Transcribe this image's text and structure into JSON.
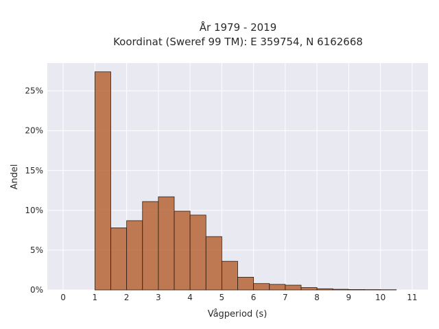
{
  "chart_data": {
    "type": "bar",
    "title_line1": "År 1979 - 2019",
    "title_line2": "Koordinat (Sweref 99 TM): E 359754, N 6162668",
    "xlabel": "Vågperiod (s)",
    "ylabel": "Andel",
    "x_ticks": [
      0,
      1,
      2,
      3,
      4,
      5,
      6,
      7,
      8,
      9,
      10,
      11
    ],
    "y_ticks": [
      0,
      5,
      10,
      15,
      20,
      25
    ],
    "y_tick_labels": [
      "0%",
      "5%",
      "10%",
      "15%",
      "20%",
      "25%"
    ],
    "xlim": [
      -0.5,
      11.5
    ],
    "ylim": [
      0,
      28.5
    ],
    "bin_width": 0.5,
    "bins": [
      {
        "x0": 1.0,
        "value": 27.4
      },
      {
        "x0": 1.5,
        "value": 7.8
      },
      {
        "x0": 2.0,
        "value": 8.7
      },
      {
        "x0": 2.5,
        "value": 11.1
      },
      {
        "x0": 3.0,
        "value": 11.7
      },
      {
        "x0": 3.5,
        "value": 9.9
      },
      {
        "x0": 4.0,
        "value": 9.4
      },
      {
        "x0": 4.5,
        "value": 6.7
      },
      {
        "x0": 5.0,
        "value": 3.6
      },
      {
        "x0": 5.5,
        "value": 1.6
      },
      {
        "x0": 6.0,
        "value": 0.8
      },
      {
        "x0": 6.5,
        "value": 0.7
      },
      {
        "x0": 7.0,
        "value": 0.6
      },
      {
        "x0": 7.5,
        "value": 0.3
      },
      {
        "x0": 8.0,
        "value": 0.15
      },
      {
        "x0": 8.5,
        "value": 0.08
      },
      {
        "x0": 9.0,
        "value": 0.05
      },
      {
        "x0": 9.5,
        "value": 0.04
      },
      {
        "x0": 10.0,
        "value": 0.03
      }
    ],
    "grid": true,
    "legend": "none",
    "colors": {
      "bar": "#b5602e",
      "bar_edge": "#2b1c12",
      "plot_background": "#e9e9f1"
    }
  }
}
